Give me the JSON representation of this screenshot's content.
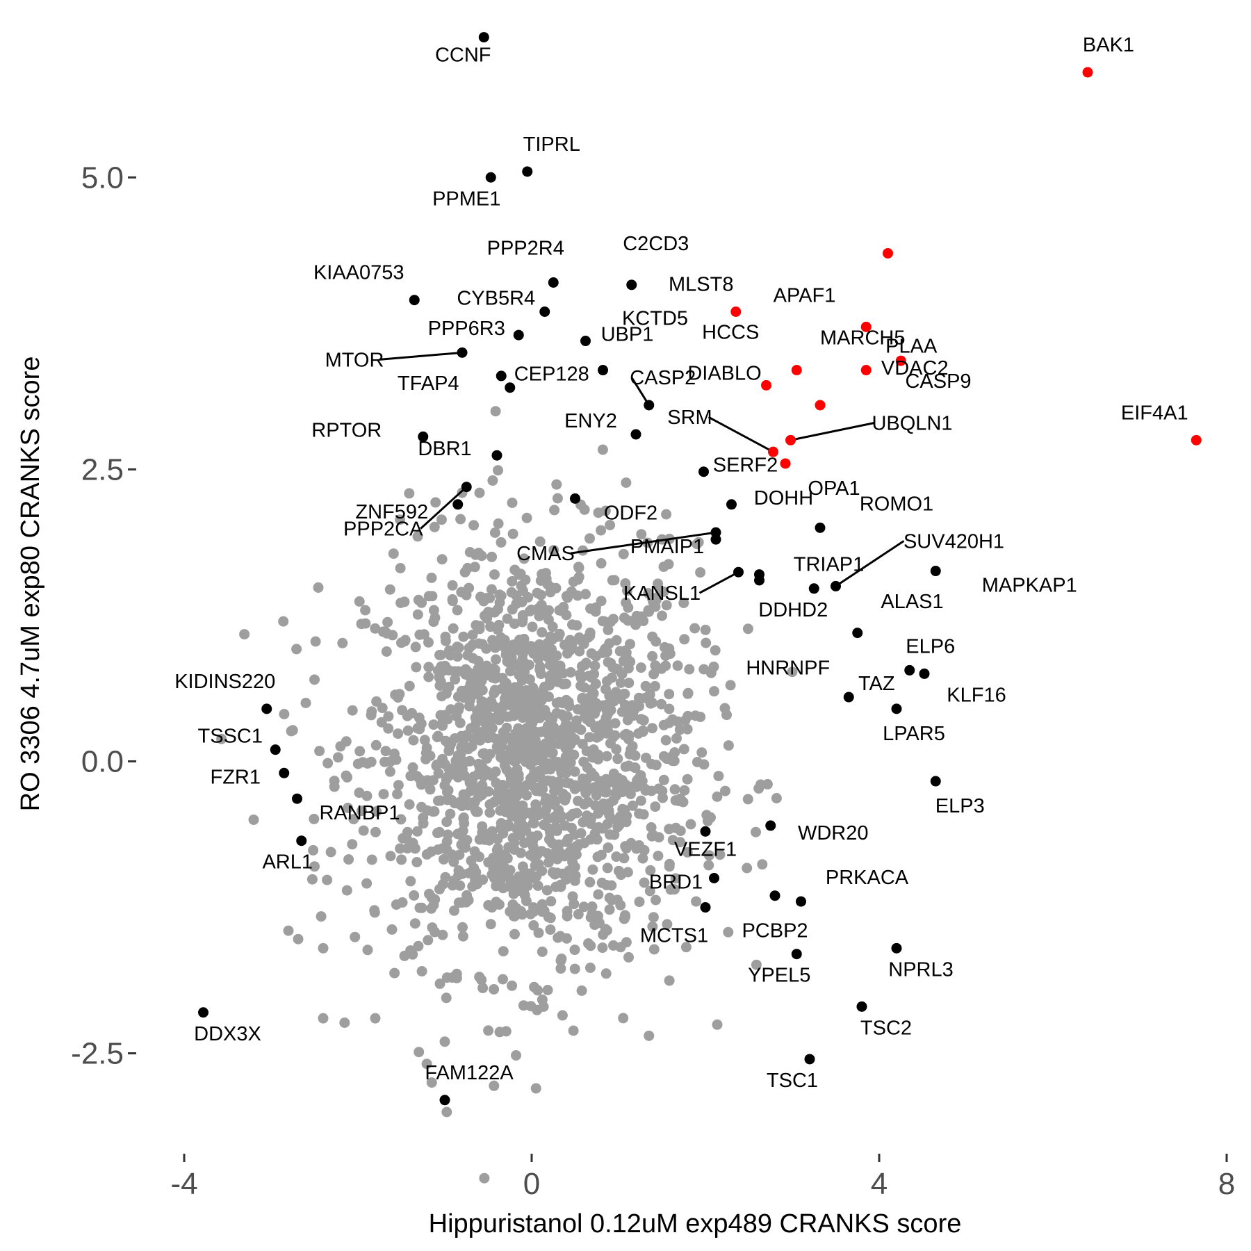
{
  "chart_data": {
    "type": "scatter",
    "title": "",
    "xlabel": "Hippuristanol 0.12uM exp489 CRANKS score",
    "ylabel": "RO 3306 4.7uM exp80 CRANKS score",
    "xlim": [
      -4.2,
      8
    ],
    "ylim": [
      -3.3,
      6.4
    ],
    "x_ticks": [
      -4,
      0,
      4,
      8
    ],
    "x_tick_labels": [
      "-4",
      "0",
      "4",
      "8"
    ],
    "y_ticks": [
      -2.5,
      0,
      2.5,
      5
    ],
    "y_tick_labels": [
      "-2.5",
      "0.0",
      "2.5",
      "5.0"
    ],
    "grid": false,
    "legend": "none",
    "colors": {
      "background": "#9e9e9e",
      "significant": "#000000",
      "highlight": "#ff0000"
    },
    "background_points": {
      "name": "",
      "description_count": 1600,
      "center": [
        0,
        0.05
      ],
      "spread": [
        0.95,
        0.9
      ],
      "color": "#9e9e9e",
      "extra": [
        {
          "x": -3.2,
          "y": -0.5
        },
        {
          "x": -2.5,
          "y": -0.9
        },
        {
          "x": -2.8,
          "y": -1.45
        },
        {
          "x": -2.4,
          "y": -1.6
        },
        {
          "x": -2.4,
          "y": -2.2
        },
        {
          "x": -1.8,
          "y": -2.2
        },
        {
          "x": -1,
          "y": -2.4
        },
        {
          "x": -1.15,
          "y": -2.75
        },
        {
          "x": 0.05,
          "y": -2.8
        },
        {
          "x": 1.35,
          "y": -2.35
        },
        {
          "x": -2.5,
          "y": 0.7
        },
        {
          "x": -2.6,
          "y": 0.5
        },
        {
          "x": 1.5,
          "y": 1.9
        },
        {
          "x": -0.8,
          "y": 2.3
        },
        {
          "x": 2.1,
          "y": 0.6
        }
      ]
    },
    "points": [
      {
        "label": "CCNF",
        "x": -0.55,
        "y": 6.2,
        "color": "#000000"
      },
      {
        "label": "BAK1",
        "x": 6.4,
        "y": 5.9,
        "color": "#ff0000"
      },
      {
        "label": "TIPRL",
        "x": -0.05,
        "y": 5.05,
        "color": "#000000"
      },
      {
        "label": "PPME1",
        "x": -0.47,
        "y": 5.0,
        "color": "#000000"
      },
      {
        "label": "PPP2R4",
        "x": 0.25,
        "y": 4.1,
        "color": "#000000"
      },
      {
        "label": "C2CD3",
        "x": 1.15,
        "y": 4.08,
        "color": "#000000"
      },
      {
        "label": "KIAA0753",
        "x": -1.35,
        "y": 3.95,
        "color": "#000000"
      },
      {
        "label": "CYB5R4",
        "x": 0.15,
        "y": 3.85,
        "color": "#000000"
      },
      {
        "label": "UBP1",
        "x": 0.62,
        "y": 3.6,
        "color": "#000000"
      },
      {
        "label": "PPP6R3",
        "x": -0.15,
        "y": 3.65,
        "color": "#000000"
      },
      {
        "label": "MTOR",
        "x": -0.8,
        "y": 3.5,
        "color": "#000000"
      },
      {
        "label": "TFAP4",
        "x": -0.35,
        "y": 3.3,
        "color": "#000000"
      },
      {
        "label": "CEP128",
        "x": -0.25,
        "y": 3.2,
        "color": "#000000"
      },
      {
        "label": "CASP2",
        "x": 1.35,
        "y": 3.05,
        "color": "#000000"
      },
      {
        "label": "KCTD5",
        "x": 0.82,
        "y": 3.35,
        "color": "#000000"
      },
      {
        "label": "MLST8",
        "x": 2.35,
        "y": 3.85,
        "color": "#ff0000"
      },
      {
        "label": "APAF1",
        "x": 4.1,
        "y": 4.35,
        "color": "#ff0000"
      },
      {
        "label": "MARCH5",
        "x": 3.85,
        "y": 3.72,
        "color": "#ff0000"
      },
      {
        "label": "VDAC2",
        "x": 4.25,
        "y": 3.43,
        "color": "#ff0000"
      },
      {
        "label": "HCCS",
        "x": 3.05,
        "y": 3.35,
        "color": "#ff0000"
      },
      {
        "label": "DIABLO",
        "x": 2.7,
        "y": 3.22,
        "color": "#ff0000"
      },
      {
        "label": "PLAA",
        "x": 3.85,
        "y": 3.35,
        "color": "#ff0000"
      },
      {
        "label": "CASP9",
        "x": 3.32,
        "y": 3.05,
        "color": "#ff0000"
      },
      {
        "label": "EIF4A1",
        "x": 7.65,
        "y": 2.75,
        "color": "#ff0000"
      },
      {
        "label": "SRM",
        "x": 2.78,
        "y": 2.65,
        "color": "#ff0000"
      },
      {
        "label": "UBQLN1",
        "x": 2.98,
        "y": 2.75,
        "color": "#ff0000"
      },
      {
        "label": "OPA1",
        "x": 2.92,
        "y": 2.55,
        "color": "#ff0000"
      },
      {
        "label": "ENY2",
        "x": 1.2,
        "y": 2.8,
        "color": "#000000"
      },
      {
        "label": "RPTOR",
        "x": -1.25,
        "y": 2.78,
        "color": "#000000"
      },
      {
        "label": "DBR1",
        "x": -0.4,
        "y": 2.62,
        "color": "#000000"
      },
      {
        "label": "SERF2",
        "x": 1.98,
        "y": 2.48,
        "color": "#000000"
      },
      {
        "label": "ZNF592",
        "x": -0.85,
        "y": 2.2,
        "color": "#000000"
      },
      {
        "label": "PPP2CA",
        "x": -0.75,
        "y": 2.35,
        "color": "#000000"
      },
      {
        "label": "ODF2",
        "x": 0.5,
        "y": 2.25,
        "color": "#000000"
      },
      {
        "label": "DOHH",
        "x": 2.3,
        "y": 2.2,
        "color": "#000000"
      },
      {
        "label": "ROMO1",
        "x": 3.32,
        "y": 2.0,
        "color": "#000000"
      },
      {
        "label": "PMAIP1",
        "x": 2.12,
        "y": 1.9,
        "color": "#000000"
      },
      {
        "label": "CMAS",
        "x": 2.12,
        "y": 1.96,
        "color": "#000000"
      },
      {
        "label": "TRIAP1",
        "x": 2.62,
        "y": 1.6,
        "color": "#000000"
      },
      {
        "label": "KANSL1",
        "x": 2.38,
        "y": 1.62,
        "color": "#000000"
      },
      {
        "label": "SUV420H1",
        "x": 3.5,
        "y": 1.5,
        "color": "#000000"
      },
      {
        "label": "DDHD2",
        "x": 3.25,
        "y": 1.48,
        "color": "#000000"
      },
      {
        "label": "MAPKAP1",
        "x": 4.65,
        "y": 1.63,
        "color": "#000000"
      },
      {
        "label": "ALAS1",
        "x": 2.62,
        "y": 1.55,
        "color": "#000000"
      },
      {
        "label": "HNRNPF",
        "x": 3.75,
        "y": 1.1,
        "color": "#000000"
      },
      {
        "label": "ELP6",
        "x": 4.35,
        "y": 0.78,
        "color": "#000000"
      },
      {
        "label": "KLF16",
        "x": 4.52,
        "y": 0.75,
        "color": "#000000"
      },
      {
        "label": "TAZ",
        "x": 3.65,
        "y": 0.55,
        "color": "#000000"
      },
      {
        "label": "LPAR5",
        "x": 4.2,
        "y": 0.45,
        "color": "#000000"
      },
      {
        "label": "KIDINS220",
        "x": -3.05,
        "y": 0.45,
        "color": "#000000"
      },
      {
        "label": "TSSC1",
        "x": -2.95,
        "y": 0.1,
        "color": "#000000"
      },
      {
        "label": "FZR1",
        "x": -2.85,
        "y": -0.1,
        "color": "#000000"
      },
      {
        "label": "RANBP1",
        "x": -2.7,
        "y": -0.32,
        "color": "#000000"
      },
      {
        "label": "ELP3",
        "x": 4.65,
        "y": -0.17,
        "color": "#000000"
      },
      {
        "label": "ARL1",
        "x": -2.65,
        "y": -0.68,
        "color": "#000000"
      },
      {
        "label": "WDR20",
        "x": 2.75,
        "y": -0.55,
        "color": "#000000"
      },
      {
        "label": "VEZF1",
        "x": 2.0,
        "y": -0.6,
        "color": "#000000"
      },
      {
        "label": "BRD1",
        "x": 2.1,
        "y": -1.0,
        "color": "#000000"
      },
      {
        "label": "PRKACA",
        "x": 3.1,
        "y": -1.2,
        "color": "#000000"
      },
      {
        "label": "PCBP2",
        "x": 2.8,
        "y": -1.15,
        "color": "#000000"
      },
      {
        "label": "MCTS1",
        "x": 2.0,
        "y": -1.25,
        "color": "#000000"
      },
      {
        "label": "NPRL3",
        "x": 4.2,
        "y": -1.6,
        "color": "#000000"
      },
      {
        "label": "YPEL5",
        "x": 3.05,
        "y": -1.65,
        "color": "#000000"
      },
      {
        "label": "TSC2",
        "x": 3.8,
        "y": -2.1,
        "color": "#000000"
      },
      {
        "label": "DDX3X",
        "x": -3.78,
        "y": -2.15,
        "color": "#000000"
      },
      {
        "label": "TSC1",
        "x": 3.2,
        "y": -2.55,
        "color": "#000000"
      },
      {
        "label": "FAM122A",
        "x": -1.0,
        "y": -2.9,
        "color": "#000000"
      }
    ]
  }
}
